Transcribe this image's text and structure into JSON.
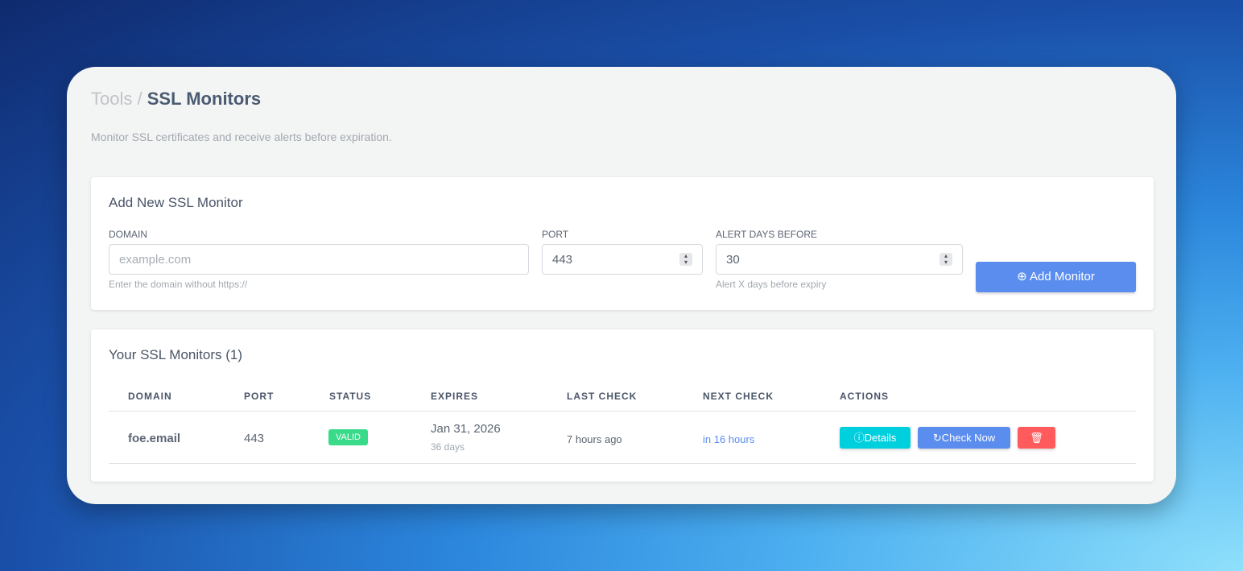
{
  "breadcrumb": {
    "parent": "Tools",
    "separator": "/",
    "current": "SSL Monitors"
  },
  "subtitle": "Monitor SSL certificates and receive alerts before expiration.",
  "add_form": {
    "title": "Add New SSL Monitor",
    "domain": {
      "label": "DOMAIN",
      "placeholder": "example.com",
      "hint": "Enter the domain without https://"
    },
    "port": {
      "label": "PORT",
      "value": "443"
    },
    "alert_days": {
      "label": "ALERT DAYS BEFORE",
      "value": "30",
      "hint": "Alert X days before expiry"
    },
    "submit_label": "Add Monitor"
  },
  "monitors": {
    "title": "Your SSL Monitors (1)",
    "columns": [
      "DOMAIN",
      "PORT",
      "STATUS",
      "EXPIRES",
      "LAST CHECK",
      "NEXT CHECK",
      "ACTIONS"
    ],
    "rows": [
      {
        "domain": "foe.email",
        "port": "443",
        "status": "VALID",
        "expires": "Jan 31, 2026",
        "expires_in": "36 days",
        "last_check": "7 hours ago",
        "next_check": "in 16 hours",
        "details_label": "Details",
        "check_label": "Check Now"
      }
    ]
  },
  "colors": {
    "primary": "#5b8def",
    "info": "#00cfdd",
    "danger": "#ff5b5c",
    "success": "#39da8a"
  }
}
